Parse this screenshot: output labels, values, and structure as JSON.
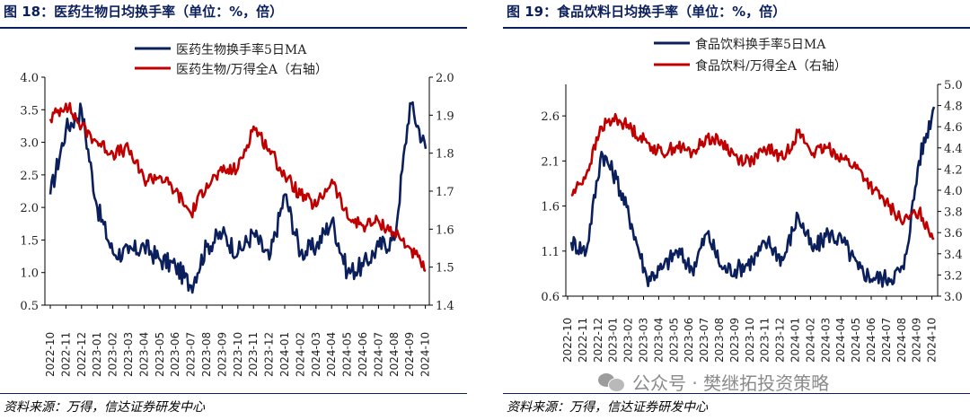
{
  "charts": [
    {
      "fig_title": "图 18：医药生物日均换手率（单位：%，倍）",
      "source": "资料来源：万得，信达证券研发中心",
      "legend": [
        "医药生物换手率5日MA",
        "医药生物/万得全A（右轴）"
      ],
      "x_tick_labels": [
        "2022-10",
        "2022-11",
        "2022-12",
        "2023-01",
        "2023-02",
        "2023-03",
        "2023-04",
        "2023-05",
        "2023-06",
        "2023-07",
        "2023-08",
        "2023-09",
        "2023-10",
        "2023-11",
        "2023-12",
        "2024-01",
        "2024-02",
        "2024-03",
        "2024-04",
        "2024-05",
        "2024-06",
        "2024-07",
        "2024-08",
        "2024-09",
        "2024-10"
      ],
      "y_left_ticks": [
        "0.5",
        "1.0",
        "1.5",
        "2.0",
        "2.5",
        "3.0",
        "3.5",
        "4.0"
      ],
      "y_right_ticks": [
        "1.4",
        "1.5",
        "1.6",
        "1.7",
        "1.8",
        "1.9",
        "2.0"
      ],
      "colors": {
        "primary": "#0b1f5c",
        "secondary": "#c00000"
      }
    },
    {
      "fig_title": "图 19：食品饮料日均换手率（单位：%，倍）",
      "source": "资料来源：万得，信达证券研发中心",
      "legend": [
        "食品饮料换手率5日MA",
        "食品饮料/万得全A（右轴）"
      ],
      "x_tick_labels": [
        "2022-10",
        "2022-11",
        "2022-12",
        "2023-01",
        "2023-02",
        "2023-03",
        "2023-04",
        "2023-05",
        "2023-06",
        "2023-07",
        "2023-08",
        "2023-09",
        "2023-10",
        "2023-11",
        "2023-12",
        "2024-01",
        "2024-02",
        "2024-03",
        "2024-04",
        "2024-05",
        "2024-06",
        "2024-07",
        "2024-08",
        "2024-09",
        "2024-10"
      ],
      "y_left_ticks": [
        "0.6",
        "1.1",
        "1.6",
        "2.1",
        "2.6"
      ],
      "y_right_ticks": [
        "3.0",
        "3.2",
        "3.4",
        "3.6",
        "3.8",
        "4.0",
        "4.2",
        "4.4",
        "4.6",
        "4.8",
        "5.0"
      ],
      "colors": {
        "primary": "#0b1f5c",
        "secondary": "#c00000"
      }
    }
  ],
  "watermark": "公众号 · 樊继拓投资策略",
  "chart_data": [
    {
      "type": "line",
      "title": "图 18：医药生物日均换手率（单位：%，倍）",
      "x": [
        "2022-10",
        "2022-11",
        "2022-12",
        "2023-01",
        "2023-02",
        "2023-03",
        "2023-04",
        "2023-05",
        "2023-06",
        "2023-07",
        "2023-08",
        "2023-09",
        "2023-10",
        "2023-11",
        "2023-12",
        "2024-01",
        "2024-02",
        "2024-03",
        "2024-04",
        "2024-05",
        "2024-06",
        "2024-07",
        "2024-08",
        "2024-09",
        "2024-10"
      ],
      "ylim": [
        0.5,
        4.0
      ],
      "y2lim": [
        1.4,
        2.0
      ],
      "legend_position": "top-center",
      "series": [
        {
          "name": "医药生物换手率5日MA",
          "axis": "left",
          "values": [
            2.2,
            3.2,
            3.5,
            2.0,
            1.3,
            1.3,
            1.4,
            1.2,
            1.1,
            0.8,
            1.4,
            1.6,
            1.3,
            1.6,
            1.2,
            2.2,
            1.3,
            1.4,
            1.8,
            1.0,
            1.1,
            1.4,
            1.5,
            3.6,
            2.9
          ]
        },
        {
          "name": "医药生物/万得全A（右轴）",
          "axis": "right",
          "values": [
            1.89,
            1.93,
            1.87,
            1.83,
            1.8,
            1.81,
            1.73,
            1.74,
            1.7,
            1.64,
            1.72,
            1.75,
            1.76,
            1.87,
            1.81,
            1.74,
            1.69,
            1.66,
            1.73,
            1.63,
            1.61,
            1.62,
            1.59,
            1.55,
            1.49
          ]
        }
      ]
    },
    {
      "type": "line",
      "title": "图 19：食品饮料日均换手率（单位：%，倍）",
      "x": [
        "2022-10",
        "2022-11",
        "2022-12",
        "2023-01",
        "2023-02",
        "2023-03",
        "2023-04",
        "2023-05",
        "2023-06",
        "2023-07",
        "2023-08",
        "2023-09",
        "2023-10",
        "2023-11",
        "2023-12",
        "2024-01",
        "2024-02",
        "2024-03",
        "2024-04",
        "2024-05",
        "2024-06",
        "2024-07",
        "2024-08",
        "2024-09",
        "2024-10"
      ],
      "ylim": [
        0.6,
        2.95
      ],
      "y2lim": [
        3.0,
        5.0
      ],
      "legend_position": "top-center",
      "series": [
        {
          "name": "食品饮料换手率5日MA",
          "axis": "left",
          "values": [
            1.2,
            1.1,
            2.2,
            1.9,
            1.4,
            0.8,
            0.9,
            1.1,
            0.9,
            1.3,
            0.9,
            0.9,
            1.0,
            1.2,
            1.0,
            1.5,
            1.1,
            1.3,
            1.2,
            0.9,
            0.8,
            0.8,
            0.9,
            2.1,
            2.7
          ]
        },
        {
          "name": "食品饮料/万得全A（右轴）",
          "axis": "right",
          "values": [
            3.95,
            4.15,
            4.6,
            4.68,
            4.58,
            4.45,
            4.35,
            4.42,
            4.35,
            4.5,
            4.45,
            4.3,
            4.28,
            4.4,
            4.3,
            4.55,
            4.35,
            4.4,
            4.3,
            4.2,
            4.0,
            3.85,
            3.7,
            3.8,
            3.55
          ]
        }
      ]
    }
  ]
}
